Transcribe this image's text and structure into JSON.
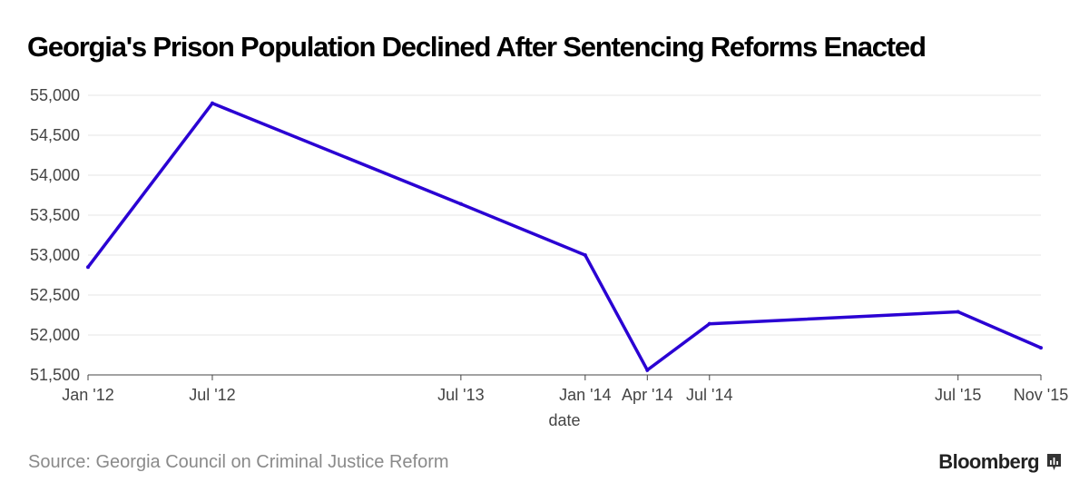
{
  "title": "Georgia's Prison Population Declined After Sentencing Reforms Enacted",
  "source": "Source: Georgia Council on Criminal Justice Reform",
  "brand": "Bloomberg",
  "brand_icon": "bloomberg-chart-icon",
  "colors": {
    "line": "#2A00D3",
    "grid": "#e6e6e6",
    "axis": "#444444"
  },
  "chart_data": {
    "type": "line",
    "title": "Georgia's Prison Population Declined After Sentencing Reforms Enacted",
    "xlabel": "date",
    "ylabel": "",
    "x": [
      "2012-01",
      "2012-07",
      "2013-07",
      "2014-01",
      "2014-04",
      "2014-07",
      "2015-07",
      "2015-11"
    ],
    "x_tick_labels": [
      "Jan '12",
      "Jul '12",
      "Jul '13",
      "Jan '14",
      "Apr '14",
      "Jul '14",
      "Jul '15",
      "Nov '15"
    ],
    "series": [
      {
        "values": [
          52850,
          54900,
          53640,
          53000,
          51560,
          52140,
          52290,
          51840
        ]
      }
    ],
    "ylim": [
      51500,
      55000
    ],
    "y_ticks": [
      51500,
      52000,
      52500,
      53000,
      53500,
      54000,
      54500,
      55000
    ],
    "y_tick_labels": [
      "51,500",
      "52,000",
      "52,500",
      "53,000",
      "53,500",
      "54,000",
      "54,500",
      "55,000"
    ],
    "grid": true,
    "legend": "none"
  }
}
